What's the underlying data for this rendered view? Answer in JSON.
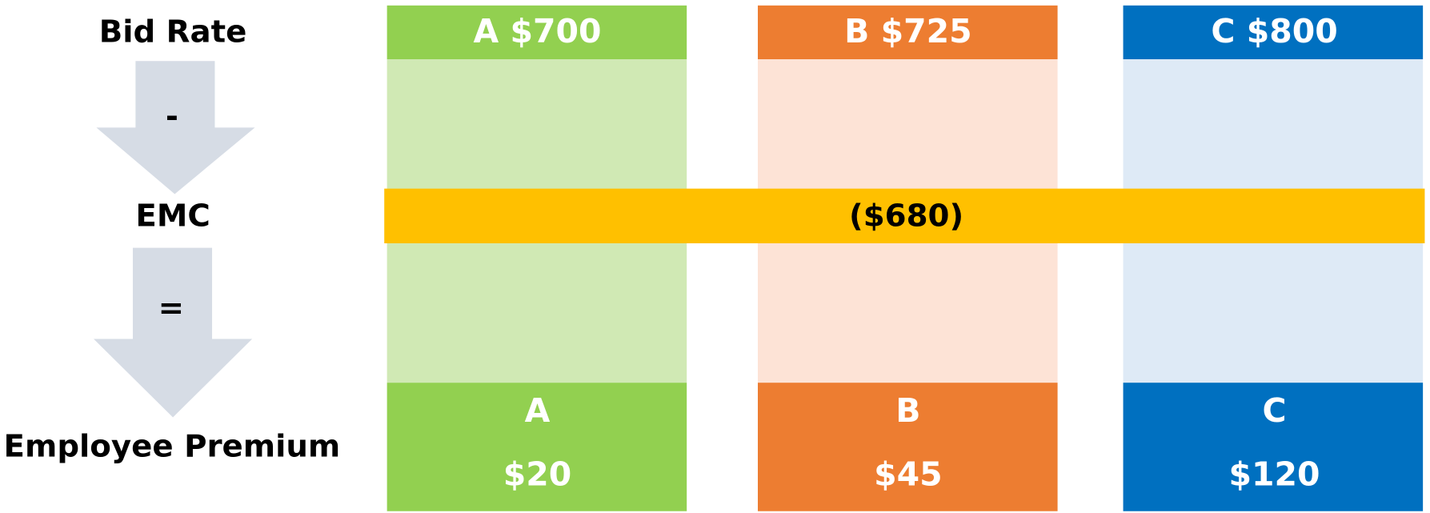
{
  "labels": {
    "bid_rate": "Bid Rate",
    "minus": "-",
    "emc": "EMC",
    "equals": "=",
    "employee_premium": "Employee Premium"
  },
  "plans": [
    {
      "header": "A $700",
      "name": "A",
      "premium": "$20"
    },
    {
      "header": "B $725",
      "name": "B",
      "premium": "$45"
    },
    {
      "header": "C $800",
      "name": "C",
      "premium": "$120"
    }
  ],
  "emc_value": "($680)"
}
